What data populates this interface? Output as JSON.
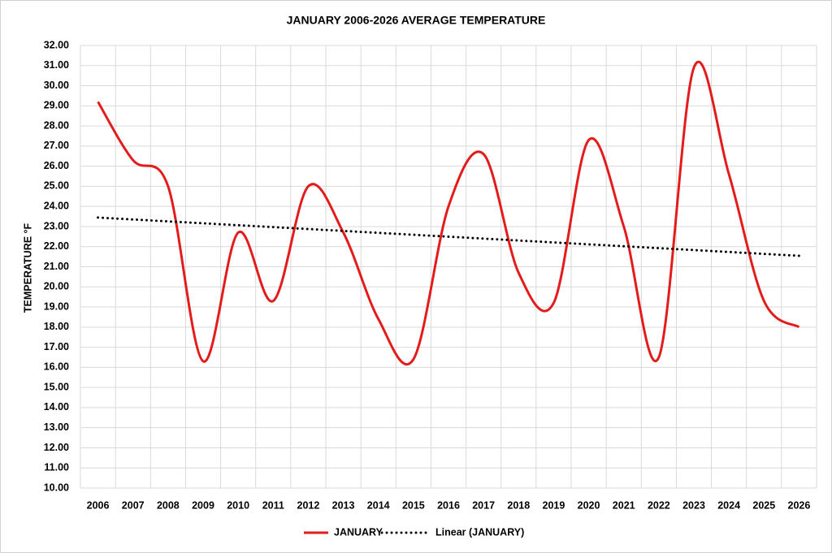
{
  "chart_data": {
    "type": "line",
    "title": "JANUARY 2006-2026 AVERAGE TEMPERATURE",
    "y_label": "TEMPERATURE °F",
    "categories": [
      "2006",
      "2007",
      "2008",
      "2009",
      "2010",
      "2011",
      "2012",
      "2013",
      "2014",
      "2015",
      "2016",
      "2017",
      "2018",
      "2019",
      "2020",
      "2021",
      "2022",
      "2023",
      "2024",
      "2025",
      "2026"
    ],
    "series": [
      {
        "name": "JANUARY",
        "color": "#e31b1b",
        "smooth": true,
        "values": [
          29.2,
          26.3,
          25.0,
          16.3,
          22.7,
          19.3,
          25.0,
          22.7,
          18.4,
          16.4,
          24.0,
          26.6,
          20.7,
          19.2,
          27.3,
          23.0,
          16.5,
          30.9,
          25.6,
          19.3,
          18.0
        ]
      }
    ],
    "trendline": {
      "name": "Linear (JANUARY)",
      "color": "#000000",
      "style": "dotted"
    },
    "ylim": [
      10,
      32
    ],
    "yticks": [
      {
        "value": 10,
        "label": "10.00"
      },
      {
        "value": 11,
        "label": "11.00"
      },
      {
        "value": 12,
        "label": "12.00"
      },
      {
        "value": 13,
        "label": "13.00"
      },
      {
        "value": 14,
        "label": "14.00"
      },
      {
        "value": 15,
        "label": "15.00"
      },
      {
        "value": 16,
        "label": "16.00"
      },
      {
        "value": 17,
        "label": "17.00"
      },
      {
        "value": 18,
        "label": "18.00"
      },
      {
        "value": 19,
        "label": "19.00"
      },
      {
        "value": 20,
        "label": "20.00"
      },
      {
        "value": 21,
        "label": "21.00"
      },
      {
        "value": 22,
        "label": "22.00"
      },
      {
        "value": 23,
        "label": "23.00"
      },
      {
        "value": 24,
        "label": "24.00"
      },
      {
        "value": 25,
        "label": "25.00"
      },
      {
        "value": 26,
        "label": "26.00"
      },
      {
        "value": 27,
        "label": "27.00"
      },
      {
        "value": 28,
        "label": "28.00"
      },
      {
        "value": 29,
        "label": "29.00"
      },
      {
        "value": 30,
        "label": "30.00"
      },
      {
        "value": 31,
        "label": "31.00"
      },
      {
        "value": 32,
        "label": "32.00"
      }
    ],
    "grid": true,
    "legend": "bottom"
  }
}
